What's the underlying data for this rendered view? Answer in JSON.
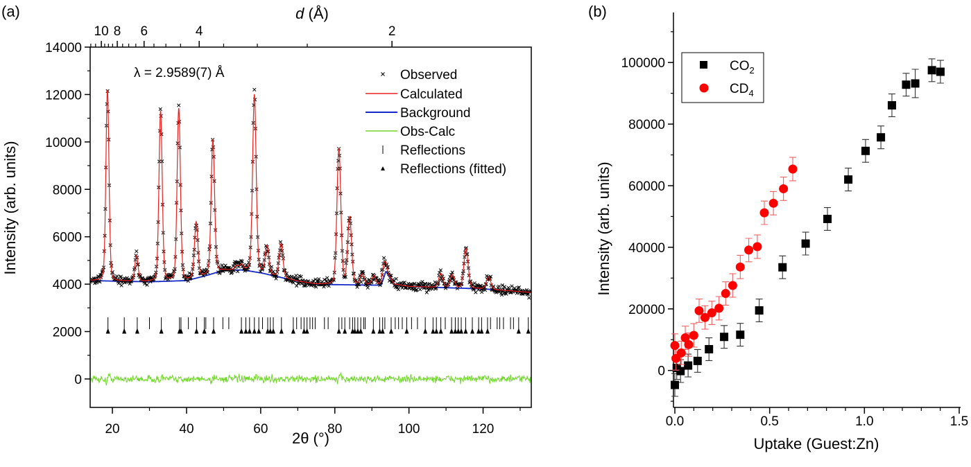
{
  "chart_data": [
    {
      "panel_label": "(a)",
      "type": "line",
      "xlabel": "2θ (°)",
      "ylabel": "Intensity (arb. units)",
      "top_axis_label": "d (Å)",
      "annotation": "λ = 2.9589(7) Å",
      "wavelength": 2.9589,
      "xlim": [
        14,
        133
      ],
      "ylim": [
        -1200,
        14000
      ],
      "xticks": [
        20,
        40,
        60,
        80,
        100,
        120
      ],
      "yticks": [
        0,
        2000,
        4000,
        6000,
        8000,
        10000,
        12000,
        14000
      ],
      "top_ticks_major": [
        10,
        8,
        6,
        4,
        2
      ],
      "top_ticks_minor": [
        12,
        11,
        9.5,
        9,
        8.5,
        7.5,
        7,
        6.5,
        5.5,
        5,
        4.5,
        3.5,
        3,
        2.5
      ],
      "legend": {
        "placement": "top-right",
        "entries": [
          "Observed",
          "Calculated",
          "Background",
          "Obs-Calc",
          "Reflections",
          "Reflections (fitted)"
        ]
      },
      "colors": {
        "observed": "#000000",
        "calculated": "#e8201e",
        "background": "#1428c8",
        "difference": "#6fd628",
        "reflections": "#000000"
      },
      "background": {
        "x": [
          14,
          20,
          30,
          40,
          45,
          50,
          55,
          60,
          65,
          70,
          75,
          80,
          90,
          92.5,
          93.8,
          96,
          100,
          110,
          120,
          133
        ],
        "y": [
          4150,
          4130,
          4100,
          4150,
          4350,
          4580,
          4600,
          4480,
          4300,
          4120,
          4000,
          3980,
          3960,
          3960,
          4550,
          4000,
          3900,
          3850,
          3800,
          3650
        ]
      },
      "peaks": {
        "two_theta": [
          18.66,
          26.5,
          33.0,
          37.9,
          42.6,
          47.1,
          53.5,
          54.8,
          58.3,
          61.7,
          65.5,
          81.1,
          84.0,
          87.4,
          90.5,
          93.3,
          108.6,
          111.7,
          115.4,
          121.5
        ],
        "intensity": [
          12200,
          5200,
          11300,
          11400,
          6600,
          10100,
          4750,
          4800,
          12000,
          5600,
          5700,
          9700,
          6800,
          4400,
          4350,
          4900,
          4450,
          4400,
          5500,
          4300
        ]
      },
      "reflections": [
        18.8,
        23.2,
        26.7,
        30.0,
        33.2,
        38.1,
        38.5,
        40.5,
        42.7,
        44.8,
        45.2,
        47.3,
        49.8,
        51.4,
        54.8,
        56.0,
        57.0,
        58.3,
        59.5,
        60.5,
        61.9,
        62.6,
        63.4,
        65.6,
        68.8,
        69.7,
        70.9,
        71.7,
        72.5,
        73.3,
        74.0,
        74.7,
        77.2,
        78.2,
        81.1,
        81.9,
        82.7,
        84.0,
        84.8,
        85.4,
        86.2,
        87.0,
        87.8,
        88.2,
        90.4,
        92.1,
        92.9,
        93.5,
        95.2,
        96.3,
        97.2,
        98.2,
        99.4,
        100.7,
        102.3,
        104.4,
        106.5,
        107.4,
        108.6,
        109.8,
        111.5,
        112.5,
        113.3,
        114.1,
        115.3,
        117.1,
        118.8,
        119.6,
        121.2,
        122.0,
        123.8,
        124.5,
        125.5,
        127.4,
        128.2,
        129.6,
        132.2
      ],
      "reflections_fitted": [
        18.8,
        23.2,
        26.7,
        33.2,
        38.1,
        38.5,
        42.7,
        44.8,
        47.3,
        54.8,
        56.0,
        57.0,
        58.3,
        59.5,
        61.9,
        62.6,
        63.4,
        65.6,
        68.8,
        71.7,
        72.5,
        81.1,
        82.7,
        84.8,
        85.4,
        86.2,
        87.0,
        90.4,
        92.1,
        92.9,
        95.2,
        99.4,
        104.4,
        106.5,
        107.4,
        108.6,
        111.5,
        112.5,
        113.3,
        114.1,
        115.3,
        117.1,
        118.8,
        119.6,
        121.2,
        129.6,
        132.2
      ],
      "reflection_marker_level": 2000,
      "difference_offset": 0
    },
    {
      "panel_label": "(b)",
      "type": "scatter",
      "xlabel": "Uptake (Guest:Zn)",
      "ylabel": "Intensity (arb. units)",
      "xlim": [
        0,
        1.5
      ],
      "ylim": [
        -12000,
        105000
      ],
      "xticks": [
        0.0,
        0.5,
        1.0,
        1.5
      ],
      "xtick_labels": [
        "0.0",
        "0.5",
        "1.0",
        "1.5"
      ],
      "yticks": [
        0,
        20000,
        40000,
        60000,
        80000,
        100000
      ],
      "legend": {
        "placement": "top-left"
      },
      "series": [
        {
          "name": "CO2",
          "name_main": "CO",
          "name_sub": "2",
          "marker": "square",
          "color": "#000000",
          "x": [
            0.0,
            0.01,
            0.03,
            0.07,
            0.12,
            0.18,
            0.26,
            0.345,
            0.445,
            0.568,
            0.69,
            0.805,
            0.915,
            1.006,
            1.087,
            1.145,
            1.22,
            1.268,
            1.356,
            1.401
          ],
          "y": [
            -4700,
            800,
            -200,
            1600,
            3100,
            6900,
            10900,
            11600,
            19500,
            33500,
            41200,
            49200,
            62000,
            71300,
            75700,
            86100,
            92800,
            93200,
            97500,
            97000
          ],
          "yerr": [
            3700,
            3700,
            3700,
            3700,
            3700,
            3700,
            3700,
            3700,
            3700,
            3700,
            3700,
            3700,
            3700,
            3700,
            3700,
            3700,
            3700,
            4600,
            3700,
            3700
          ]
        },
        {
          "name": "CD4",
          "name_main": "CD",
          "name_sub": "4",
          "marker": "circle",
          "color": "#ff0000",
          "x": [
            0.0,
            0.006,
            0.034,
            0.055,
            0.073,
            0.1,
            0.128,
            0.159,
            0.195,
            0.233,
            0.268,
            0.305,
            0.345,
            0.39,
            0.435,
            0.472,
            0.52,
            0.573,
            0.622
          ],
          "y": [
            8100,
            3900,
            5700,
            10600,
            8400,
            11400,
            19400,
            17200,
            18700,
            20200,
            25000,
            27600,
            33600,
            39100,
            40200,
            51200,
            54300,
            59000,
            65400
          ],
          "yerr": [
            3800,
            3800,
            3800,
            3800,
            3800,
            3800,
            3800,
            3800,
            3800,
            3800,
            3800,
            3800,
            3800,
            3800,
            3800,
            3800,
            3800,
            3800,
            3800
          ]
        }
      ]
    }
  ]
}
